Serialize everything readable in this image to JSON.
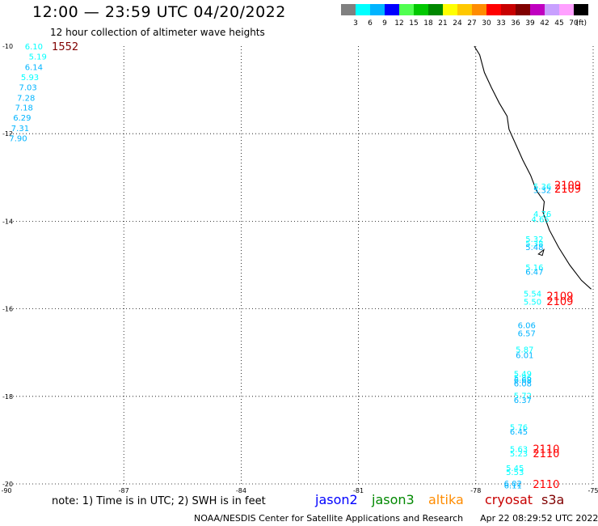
{
  "header": {
    "title": "12:00 — 23:59 UTC 04/20/2022",
    "subtitle": "12 hour collection of altimeter wave heights"
  },
  "colorbar": {
    "labels": [
      "3",
      "6",
      "9",
      "12",
      "15",
      "18",
      "21",
      "24",
      "27",
      "30",
      "33",
      "36",
      "39",
      "42",
      "45",
      "70"
    ],
    "unit": "(ft)",
    "colors": [
      "#808080",
      "#00ffff",
      "#00b4ff",
      "#0000ff",
      "#50ff50",
      "#00c800",
      "#008800",
      "#ffff00",
      "#ffc800",
      "#ff8c00",
      "#ff0000",
      "#c80000",
      "#800000",
      "#c000c0",
      "#c8a0ff",
      "#ffa0ff",
      "#000000"
    ]
  },
  "axes": {
    "lat_labels": [
      "-10",
      "-12",
      "-14",
      "-16",
      "-18",
      "-20"
    ],
    "lon_labels": [
      "-90",
      "-87",
      "-84",
      "-81",
      "-78",
      "-75"
    ]
  },
  "chart_data": {
    "type": "scatter",
    "x_range": [
      -90,
      -75
    ],
    "y_range": [
      -20,
      -10
    ],
    "swh_points": [
      {
        "lon": -89.3,
        "lat": -10.0,
        "v": "6.10",
        "c": "#00ffff"
      },
      {
        "lon": -89.2,
        "lat": -10.23,
        "v": "5.19",
        "c": "#00ffff"
      },
      {
        "lon": -89.3,
        "lat": -10.47,
        "v": "6.14",
        "c": "#00b4ff"
      },
      {
        "lon": -89.4,
        "lat": -10.7,
        "v": "5.93",
        "c": "#00ffff"
      },
      {
        "lon": -89.45,
        "lat": -10.93,
        "v": "7.03",
        "c": "#00b4ff"
      },
      {
        "lon": -89.5,
        "lat": -11.17,
        "v": "7.28",
        "c": "#00b4ff"
      },
      {
        "lon": -89.55,
        "lat": -11.4,
        "v": "7.18",
        "c": "#00b4ff"
      },
      {
        "lon": -89.6,
        "lat": -11.63,
        "v": "6.29",
        "c": "#00b4ff"
      },
      {
        "lon": -89.65,
        "lat": -11.87,
        "v": "7.31",
        "c": "#00b4ff"
      },
      {
        "lon": -89.7,
        "lat": -12.1,
        "v": "7.90",
        "c": "#00b4ff"
      },
      {
        "lon": -76.3,
        "lat": -13.2,
        "v": "5.36",
        "c": "#00ffff"
      },
      {
        "lon": -76.3,
        "lat": -13.28,
        "v": "5.32",
        "c": "#00b4ff"
      },
      {
        "lon": -76.3,
        "lat": -13.83,
        "v": "4.76",
        "c": "#00ffff"
      },
      {
        "lon": -76.35,
        "lat": -13.95,
        "v": "4.65",
        "c": "#00ffff"
      },
      {
        "lon": -76.5,
        "lat": -14.4,
        "v": "5.32",
        "c": "#00ffff"
      },
      {
        "lon": -76.5,
        "lat": -14.5,
        "v": "5.38",
        "c": "#00ffff"
      },
      {
        "lon": -76.5,
        "lat": -14.58,
        "v": "5.48",
        "c": "#00b4ff"
      },
      {
        "lon": -76.5,
        "lat": -15.05,
        "v": "5.16",
        "c": "#00ffff"
      },
      {
        "lon": -76.5,
        "lat": -15.15,
        "v": "6.47",
        "c": "#00b4ff"
      },
      {
        "lon": -76.55,
        "lat": -15.65,
        "v": "5.54",
        "c": "#00ffff"
      },
      {
        "lon": -76.55,
        "lat": -15.83,
        "v": "5.50",
        "c": "#00ffff"
      },
      {
        "lon": -76.7,
        "lat": -16.37,
        "v": "6.06",
        "c": "#00b4ff"
      },
      {
        "lon": -76.7,
        "lat": -16.55,
        "v": "6.57",
        "c": "#00b4ff"
      },
      {
        "lon": -76.75,
        "lat": -16.92,
        "v": "5.87",
        "c": "#00ffff"
      },
      {
        "lon": -76.75,
        "lat": -17.05,
        "v": "6.01",
        "c": "#00b4ff"
      },
      {
        "lon": -76.8,
        "lat": -17.48,
        "v": "5.49",
        "c": "#00ffff"
      },
      {
        "lon": -76.8,
        "lat": -17.57,
        "v": "5.86",
        "c": "#00ffff"
      },
      {
        "lon": -76.8,
        "lat": -17.62,
        "v": "6.68",
        "c": "#00b4ff"
      },
      {
        "lon": -76.8,
        "lat": -17.7,
        "v": "6.08",
        "c": "#00b4ff"
      },
      {
        "lon": -76.8,
        "lat": -17.98,
        "v": "5.72",
        "c": "#00ffff"
      },
      {
        "lon": -76.8,
        "lat": -18.08,
        "v": "6.37",
        "c": "#00b4ff"
      },
      {
        "lon": -76.9,
        "lat": -18.7,
        "v": "5.76",
        "c": "#00ffff"
      },
      {
        "lon": -76.9,
        "lat": -18.8,
        "v": "6.45",
        "c": "#00b4ff"
      },
      {
        "lon": -76.9,
        "lat": -19.2,
        "v": "5.63",
        "c": "#00ffff"
      },
      {
        "lon": -76.9,
        "lat": -19.3,
        "v": "5.23",
        "c": "#00ffff"
      },
      {
        "lon": -77.0,
        "lat": -19.63,
        "v": "5.45",
        "c": "#00ffff"
      },
      {
        "lon": -77.0,
        "lat": -19.72,
        "v": "5.53",
        "c": "#00ffff"
      },
      {
        "lon": -77.05,
        "lat": -19.98,
        "v": "6.02",
        "c": "#00b4ff"
      },
      {
        "lon": -77.05,
        "lat": -20.03,
        "v": "6.11",
        "c": "#00b4ff"
      }
    ],
    "pass_labels": [
      {
        "lon": -88.5,
        "lat": -10.0,
        "t": "1552",
        "c": "#800000"
      },
      {
        "lon": -75.65,
        "lat": -13.17,
        "t": "2109",
        "c": "#ff0000"
      },
      {
        "lon": -75.65,
        "lat": -13.25,
        "t": "2109",
        "c": "#ff0000"
      },
      {
        "lon": -75.85,
        "lat": -15.7,
        "t": "2109",
        "c": "#ff0000"
      },
      {
        "lon": -75.85,
        "lat": -15.82,
        "t": "2109",
        "c": "#ff0000"
      },
      {
        "lon": -76.2,
        "lat": -19.2,
        "t": "2110",
        "c": "#ff0000"
      },
      {
        "lon": -76.2,
        "lat": -19.3,
        "t": "2110",
        "c": "#ff0000"
      },
      {
        "lon": -76.2,
        "lat": -20.0,
        "t": "2110",
        "c": "#ff0000"
      }
    ],
    "coastline": [
      [
        -78.04,
        -10.0
      ],
      [
        -77.9,
        -10.2
      ],
      [
        -77.78,
        -10.6
      ],
      [
        -77.6,
        -10.95
      ],
      [
        -77.4,
        -11.3
      ],
      [
        -77.2,
        -11.6
      ],
      [
        -77.15,
        -11.9
      ],
      [
        -76.95,
        -12.3
      ],
      [
        -76.8,
        -12.6
      ],
      [
        -76.6,
        -12.95
      ],
      [
        -76.45,
        -13.3
      ],
      [
        -76.25,
        -13.55
      ],
      [
        -76.28,
        -13.8
      ],
      [
        -76.12,
        -14.2
      ],
      [
        -75.88,
        -14.6
      ],
      [
        -75.6,
        -15.0
      ],
      [
        -75.3,
        -15.35
      ],
      [
        -75.05,
        -15.55
      ]
    ],
    "island": [
      [
        -76.4,
        -14.75
      ],
      [
        -76.26,
        -14.65
      ],
      [
        -76.3,
        -14.78
      ],
      [
        -76.4,
        -14.75
      ]
    ]
  },
  "legend": {
    "note": "note:  1) Time is in UTC;  2) SWH is in feet",
    "satellites": [
      {
        "name": "jason2",
        "color": "#0000ff"
      },
      {
        "name": "jason3",
        "color": "#008800"
      },
      {
        "name": "altika",
        "color": "#ff8c00"
      },
      {
        "name": "cryosat",
        "color": "#c80000"
      },
      {
        "name": "s3a",
        "color": "#800000"
      }
    ]
  },
  "footer": {
    "credit": "NOAA/NESDIS Center for Satellite Applications and Research",
    "timestamp": "Apr 22 08:29:52 UTC 2022"
  }
}
